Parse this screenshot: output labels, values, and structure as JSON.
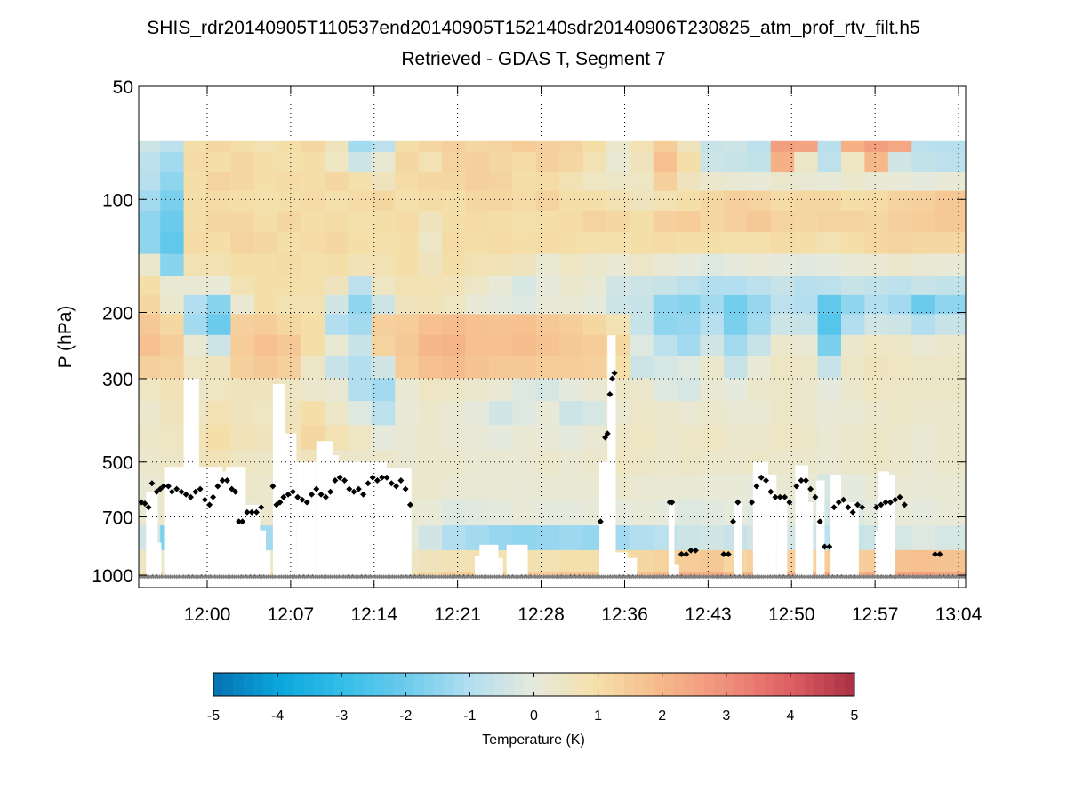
{
  "chart_data": {
    "type": "heatmap",
    "title": "SHIS_rdr20140905T110537end20140905T152140sdr20140906T230825_atm_prof_rtv_filt.h5",
    "subtitle": "Retrieved - GDAS T, Segment 7",
    "xlabel": "",
    "ylabel": "P (hPa)",
    "y_scale": "log",
    "y_reversed": true,
    "ylim": [
      1080,
      50
    ],
    "y_ticks": [
      50,
      100,
      200,
      300,
      500,
      700,
      1000
    ],
    "y_tick_labels": [
      "50",
      "100",
      "200",
      "300",
      "500",
      "700",
      "1000"
    ],
    "xlim_minutes_from_1200": [
      -5.8,
      64.6
    ],
    "x_ticks_minutes_from_1200": [
      0,
      7.11,
      14.22,
      21.33,
      28.44,
      35.56,
      42.67,
      49.78,
      56.89,
      64
    ],
    "x_tick_labels": [
      "12:00",
      "12:07",
      "12:14",
      "12:21",
      "12:28",
      "12:36",
      "12:43",
      "12:50",
      "12:57",
      "13:04"
    ],
    "grid": true,
    "colorbar": {
      "label": "Temperature (K)",
      "range": [
        -5,
        5
      ],
      "ticks": [
        -5,
        -4,
        -3,
        -2,
        -1,
        0,
        1,
        2,
        3,
        4,
        5
      ],
      "tick_labels": [
        "-5",
        "-4",
        "-3",
        "-2",
        "-1",
        "0",
        "1",
        "2",
        "3",
        "4",
        "5"
      ],
      "colors": [
        "#0571b0",
        "#0aa6dc",
        "#34bde9",
        "#6ccbec",
        "#b2def0",
        "#e6eadc",
        "#f5dfa8",
        "#f6b889",
        "#ef8f7a",
        "#de5f62",
        "#a92f45"
      ],
      "location": "bottom"
    },
    "data_top_pressure": 70,
    "pressure_levels": [
      70,
      80,
      90,
      100,
      115,
      130,
      150,
      170,
      190,
      215,
      245,
      280,
      320,
      370,
      430,
      500,
      580,
      680,
      800,
      920,
      1050
    ],
    "time_bins_minutes_from_1200": [
      -5.8,
      -4,
      -2,
      0,
      2,
      4,
      6,
      8,
      10,
      12,
      14,
      16,
      18,
      20,
      22,
      24,
      26,
      28,
      30,
      32,
      34,
      36,
      38,
      40,
      42,
      44,
      46,
      48,
      50,
      52,
      54,
      56,
      58,
      60,
      62,
      64.6
    ],
    "values": [
      [
        -0.5,
        -0.8,
        1.0,
        1.2,
        1.0,
        0.8,
        1.0,
        1.2,
        0.6,
        -1.2,
        -0.8,
        1.0,
        1.2,
        1.4,
        1.2,
        1.3,
        1.5,
        1.4,
        1.3,
        1.0,
        0.3,
        0.8,
        1.5,
        0.6,
        -0.6,
        -0.5,
        -0.8,
        2.6,
        2.5,
        -0.9,
        2.2,
        2.6,
        2.4,
        -0.8,
        -0.9
      ],
      [
        -0.8,
        -1.2,
        1.1,
        1.0,
        1.2,
        1.0,
        0.9,
        1.0,
        0.5,
        -0.5,
        0.2,
        1.2,
        0.8,
        1.3,
        1.4,
        1.2,
        1.1,
        1.4,
        1.2,
        0.8,
        0.2,
        0.6,
        1.8,
        1.0,
        -0.5,
        -0.6,
        -0.7,
        2.2,
        0.4,
        -0.8,
        0.5,
        2.0,
        -0.4,
        -0.7,
        -0.8
      ],
      [
        -0.9,
        -1.5,
        1.0,
        1.3,
        1.2,
        1.0,
        1.1,
        1.0,
        1.2,
        0.9,
        0.6,
        1.1,
        1.2,
        1.2,
        1.4,
        1.3,
        1.0,
        1.1,
        0.8,
        0.5,
        0.4,
        0.5,
        1.4,
        0.6,
        0.3,
        0.2,
        0.1,
        0.3,
        0.2,
        0.1,
        0.3,
        0.2,
        0.1,
        0.0,
        0.1
      ],
      [
        -1.2,
        -1.8,
        1.0,
        1.1,
        1.0,
        0.9,
        1.0,
        1.1,
        0.9,
        1.1,
        1.2,
        0.9,
        1.1,
        1.0,
        1.2,
        1.2,
        1.1,
        1.3,
        1.0,
        1.0,
        0.8,
        0.6,
        0.8,
        1.0,
        1.2,
        1.4,
        1.3,
        1.1,
        1.2,
        1.2,
        1.0,
        1.1,
        1.3,
        1.4,
        1.6
      ],
      [
        -1.5,
        -2.0,
        1.0,
        1.2,
        1.2,
        1.0,
        1.2,
        1.0,
        1.1,
        0.9,
        1.0,
        1.1,
        0.6,
        1.0,
        1.1,
        1.0,
        0.9,
        1.0,
        1.1,
        1.3,
        1.2,
        1.0,
        1.4,
        1.5,
        1.2,
        1.4,
        1.6,
        1.3,
        1.2,
        1.3,
        1.3,
        1.2,
        1.4,
        1.5,
        1.6
      ],
      [
        -1.5,
        -2.2,
        1.1,
        1.0,
        1.3,
        1.2,
        1.0,
        1.1,
        1.2,
        1.0,
        0.9,
        1.0,
        0.4,
        1.1,
        1.0,
        1.1,
        1.0,
        1.1,
        1.0,
        0.9,
        0.9,
        1.0,
        1.1,
        1.0,
        1.0,
        0.9,
        0.9,
        1.1,
        1.0,
        0.8,
        1.0,
        1.2,
        1.3,
        1.2,
        1.2
      ],
      [
        0.3,
        -1.6,
        0.8,
        0.8,
        1.0,
        1.0,
        1.1,
        0.9,
        1.0,
        0.7,
        0.8,
        1.0,
        0.6,
        1.0,
        0.8,
        0.7,
        0.6,
        0.2,
        0.5,
        0.3,
        0.2,
        0.4,
        0.2,
        0.0,
        -0.2,
        0.0,
        0.1,
        0.0,
        -0.1,
        0.0,
        0.1,
        0.2,
        0.3,
        0.2,
        0.1
      ],
      [
        1.0,
        0.2,
        0.2,
        0.1,
        0.8,
        1.0,
        1.0,
        0.9,
        0.6,
        -0.8,
        0.5,
        0.8,
        0.8,
        0.7,
        0.4,
        0.1,
        -0.3,
        0.0,
        0.3,
        0.2,
        -0.4,
        -0.5,
        -0.6,
        -0.8,
        -1.0,
        -1.0,
        -0.8,
        -0.6,
        -0.9,
        -0.8,
        -0.6,
        -0.7,
        -0.8,
        -0.6,
        -0.7
      ],
      [
        1.2,
        0.3,
        -1.0,
        -1.6,
        0.2,
        1.0,
        0.8,
        0.8,
        -0.4,
        -1.5,
        -0.5,
        0.6,
        0.7,
        0.5,
        0.1,
        0.0,
        -0.2,
        0.1,
        0.2,
        0.0,
        -0.5,
        -0.6,
        -1.5,
        -1.6,
        -1.2,
        -1.9,
        -1.4,
        -0.8,
        -1.0,
        -2.2,
        -1.5,
        -1.0,
        -1.2,
        -2.0,
        -1.5
      ],
      [
        1.6,
        1.2,
        -1.2,
        -2.0,
        1.4,
        1.5,
        1.2,
        1.0,
        -1.0,
        -1.2,
        1.4,
        1.5,
        1.8,
        1.9,
        1.8,
        1.7,
        1.8,
        1.6,
        1.5,
        1.2,
        0.8,
        -0.6,
        -1.5,
        -1.4,
        -0.9,
        -1.8,
        -1.2,
        -0.5,
        -0.6,
        -2.4,
        -1.0,
        -0.4,
        -0.5,
        -1.0,
        -0.6
      ],
      [
        1.8,
        1.5,
        0.2,
        -0.5,
        1.5,
        1.8,
        1.6,
        1.0,
        0.2,
        -0.6,
        1.3,
        1.6,
        2.0,
        2.1,
        1.8,
        1.8,
        1.9,
        1.7,
        1.6,
        1.5,
        1.2,
        -0.2,
        -0.8,
        -1.2,
        -0.4,
        -1.2,
        -0.6,
        0.3,
        0.2,
        -1.8,
        0.3,
        0.5,
        0.4,
        0.2,
        0.3
      ],
      [
        1.4,
        1.3,
        0.5,
        0.6,
        1.4,
        1.6,
        1.4,
        0.4,
        -0.6,
        -1.0,
        -0.4,
        1.5,
        1.8,
        1.9,
        1.7,
        1.6,
        1.6,
        1.5,
        1.5,
        1.4,
        1.0,
        -0.5,
        -0.3,
        -0.2,
        0.3,
        -0.6,
        0.1,
        0.5,
        0.4,
        -0.6,
        0.4,
        0.6,
        0.5,
        0.4,
        0.4
      ],
      [
        0.5,
        0.7,
        0.4,
        0.5,
        0.6,
        0.6,
        0.5,
        0.3,
        0.2,
        -1.0,
        -1.2,
        0.2,
        0.5,
        0.4,
        0.3,
        0.2,
        -0.2,
        -0.3,
        0.0,
        0.2,
        0.4,
        0.3,
        -0.2,
        -0.3,
        0.2,
        0.0,
        0.3,
        0.4,
        0.3,
        0.0,
        0.3,
        0.5,
        0.4,
        0.4,
        0.4
      ],
      [
        0.3,
        0.6,
        0.5,
        0.8,
        0.6,
        0.5,
        0.6,
        1.0,
        0.4,
        -0.2,
        -0.8,
        0.1,
        0.3,
        0.2,
        0.0,
        -0.4,
        -0.2,
        0.1,
        -0.5,
        -0.3,
        0.2,
        0.4,
        0.3,
        0.2,
        0.3,
        0.2,
        0.2,
        0.4,
        0.3,
        0.1,
        0.2,
        0.3,
        0.4,
        0.3,
        0.3
      ],
      [
        0.4,
        0.5,
        0.7,
        1.0,
        0.7,
        0.6,
        0.7,
        1.2,
        0.8,
        0.5,
        0.0,
        0.2,
        0.3,
        0.2,
        0.1,
        0.0,
        0.2,
        0.1,
        0.0,
        0.2,
        0.4,
        0.5,
        0.3,
        0.4,
        0.5,
        0.3,
        0.3,
        0.5,
        0.4,
        0.2,
        0.3,
        0.4,
        0.3,
        0.2,
        0.3
      ],
      [
        0.3,
        0.4,
        0.6,
        0.7,
        0.5,
        0.4,
        0.5,
        0.6,
        0.4,
        0.3,
        0.3,
        0.2,
        0.3,
        0.3,
        0.2,
        0.2,
        0.2,
        0.3,
        0.2,
        0.3,
        0.5,
        0.4,
        0.3,
        0.4,
        0.3,
        0.3,
        0.4,
        0.3,
        0.3,
        0.2,
        0.3,
        0.4,
        0.3,
        0.2,
        0.3
      ],
      [
        0.2,
        0.3,
        0.4,
        0.4,
        0.4,
        0.3,
        0.3,
        0.4,
        0.3,
        0.2,
        0.2,
        0.3,
        0.3,
        0.2,
        0.2,
        0.2,
        0.1,
        0.2,
        0.2,
        0.2,
        0.3,
        0.2,
        0.2,
        0.2,
        0.1,
        0.1,
        0.0,
        0.2,
        0.1,
        -0.3,
        0.0,
        0.2,
        0.2,
        0.1,
        0.2
      ],
      [
        0.2,
        0.3,
        0.3,
        0.3,
        0.2,
        0.3,
        0.1,
        0.2,
        0.2,
        0.2,
        0.2,
        0.2,
        0.1,
        -0.2,
        -0.1,
        0.0,
        0.1,
        0.0,
        0.0,
        0.1,
        0.0,
        0.1,
        0.0,
        -0.2,
        -0.1,
        0.0,
        -0.2,
        0.0,
        -0.1,
        -0.4,
        -0.2,
        0.0,
        0.1,
        0.0,
        0.1
      ],
      [
        -0.4,
        -1.8,
        0.2,
        0.2,
        0.2,
        -1.2,
        -1.5,
        0.1,
        0.1,
        0.1,
        0.1,
        0.1,
        -0.4,
        -1.0,
        -1.2,
        -1.4,
        -1.5,
        -1.4,
        -1.3,
        -1.4,
        -1.2,
        -1.0,
        -0.8,
        -0.5,
        -0.4,
        -0.6,
        -0.4,
        -0.3,
        -0.5,
        -0.8,
        -0.6,
        -0.5,
        -0.3,
        -0.2,
        -0.3
      ],
      [
        0.5,
        0.3,
        0.4,
        0.5,
        0.8,
        0.4,
        -0.3,
        0.2,
        0.3,
        0.3,
        0.3,
        0.4,
        0.6,
        0.7,
        0.8,
        0.8,
        0.9,
        0.8,
        0.9,
        0.9,
        1.0,
        1.2,
        1.3,
        1.5,
        1.6,
        1.2,
        1.4,
        1.4,
        1.3,
        1.5,
        1.4,
        1.5,
        1.7,
        1.8,
        1.7
      ],
      [
        0.8,
        1.2,
        0.8,
        0.6,
        1.0,
        1.2,
        1.5,
        0.6,
        0.6,
        0.5,
        0.8,
        0.9,
        1.2,
        1.4,
        1.5,
        1.5,
        1.6,
        1.5,
        1.7,
        1.8,
        1.6,
        1.8,
        2.0,
        2.2,
        2.3,
        2.0,
        2.2,
        2.1,
        2.2,
        2.4,
        2.2,
        2.4,
        2.5,
        2.6,
        2.4
      ]
    ],
    "no_data_regions_note": "white cloud-masked columns below cloud tops",
    "cloud_mask": [
      {
        "t0": -5.2,
        "t1": -4.2,
        "p_top": 600
      },
      {
        "t0": -4.2,
        "t1": -3.9,
        "p_top": 820
      },
      {
        "t0": -2.0,
        "t1": -0.7,
        "p_top": 300
      },
      {
        "t0": -3.6,
        "t1": 1.3,
        "p_top": 515
      },
      {
        "t0": 1.3,
        "t1": 1.6,
        "p_top": 530
      },
      {
        "t0": 1.6,
        "t1": 3.3,
        "p_top": 515
      },
      {
        "t0": 3.3,
        "t1": 4.5,
        "p_top": 650
      },
      {
        "t0": 4.5,
        "t1": 5.0,
        "p_top": 760
      },
      {
        "t0": 5.0,
        "t1": 5.4,
        "p_top": 860
      },
      {
        "t0": 5.6,
        "t1": 6.6,
        "p_top": 310
      },
      {
        "t0": 6.6,
        "t1": 7.6,
        "p_top": 420
      },
      {
        "t0": 7.6,
        "t1": 9.3,
        "p_top": 500
      },
      {
        "t0": 9.3,
        "t1": 10.7,
        "p_top": 440
      },
      {
        "t0": 10.7,
        "t1": 11.2,
        "p_top": 480
      },
      {
        "t0": 11.2,
        "t1": 13.4,
        "p_top": 500
      },
      {
        "t0": 13.4,
        "t1": 15.3,
        "p_top": 500
      },
      {
        "t0": 15.3,
        "t1": 17.4,
        "p_top": 520
      },
      {
        "t0": 22.8,
        "t1": 23.2,
        "p_top": 890
      },
      {
        "t0": 23.2,
        "t1": 24.8,
        "p_top": 830
      },
      {
        "t0": 24.8,
        "t1": 25.2,
        "p_top": 900
      },
      {
        "t0": 25.5,
        "t1": 27.3,
        "p_top": 830
      },
      {
        "t0": 33.4,
        "t1": 34.8,
        "p_top": 500
      },
      {
        "t0": 34.1,
        "t1": 34.8,
        "p_top": 230
      },
      {
        "t0": 34.8,
        "t1": 35.8,
        "p_top": 870
      },
      {
        "t0": 35.8,
        "t1": 36.6,
        "p_top": 900
      },
      {
        "t0": 39.3,
        "t1": 39.8,
        "p_top": 640
      },
      {
        "t0": 39.8,
        "t1": 40.2,
        "p_top": 940
      },
      {
        "t0": 44.9,
        "t1": 45.6,
        "p_top": 640
      },
      {
        "t0": 46.5,
        "t1": 47.8,
        "p_top": 500
      },
      {
        "t0": 47.8,
        "t1": 48.5,
        "p_top": 540
      },
      {
        "t0": 48.5,
        "t1": 49.4,
        "p_top": 620
      },
      {
        "t0": 50.1,
        "t1": 51.2,
        "p_top": 510
      },
      {
        "t0": 51.2,
        "t1": 51.6,
        "p_top": 640
      },
      {
        "t0": 51.9,
        "t1": 52.6,
        "p_top": 560
      },
      {
        "t0": 53.1,
        "t1": 54.0,
        "p_top": 540
      },
      {
        "t0": 54.0,
        "t1": 55.5,
        "p_top": 640
      },
      {
        "t0": 57.1,
        "t1": 58.1,
        "p_top": 530
      },
      {
        "t0": 58.1,
        "t1": 58.6,
        "p_top": 540
      },
      {
        "t0": 56.9,
        "t1": 57.1,
        "p_top": 760
      }
    ],
    "cloud_top_points": {
      "name": "cloud top pressure",
      "color": "#000000",
      "t": [
        -5.6,
        -5.3,
        -5.0,
        -4.7,
        -4.3,
        -4.0,
        -3.7,
        -3.3,
        -3.0,
        -2.6,
        -2.2,
        -1.8,
        -1.4,
        -1.0,
        -0.6,
        -0.2,
        0.2,
        0.5,
        0.9,
        1.3,
        1.7,
        2.1,
        2.4,
        2.7,
        3.0,
        3.4,
        3.8,
        4.2,
        4.6,
        5.6,
        5.9,
        6.2,
        6.5,
        6.9,
        7.3,
        7.7,
        8.1,
        8.5,
        8.9,
        9.3,
        9.7,
        10.1,
        10.5,
        10.9,
        11.3,
        11.7,
        12.1,
        12.5,
        12.9,
        13.3,
        13.7,
        14.1,
        14.5,
        14.9,
        15.3,
        15.7,
        16.1,
        16.5,
        16.9,
        17.3,
        33.5,
        33.9,
        34.1,
        34.3,
        34.5,
        34.7,
        39.4,
        39.6,
        40.4,
        40.8,
        41.2,
        41.6,
        44.0,
        44.4,
        44.8,
        45.2,
        46.4,
        46.8,
        47.2,
        47.6,
        48.0,
        48.4,
        48.8,
        49.2,
        49.6,
        50.2,
        50.6,
        51.0,
        51.4,
        51.8,
        52.2,
        52.6,
        53.0,
        53.4,
        53.8,
        54.2,
        54.6,
        55.0,
        55.4,
        55.8,
        57.0,
        57.4,
        57.8,
        58.2,
        58.6,
        59.0,
        59.4,
        62.0,
        62.4
      ],
      "p": [
        640,
        645,
        660,
        570,
        600,
        590,
        580,
        580,
        600,
        590,
        600,
        610,
        620,
        600,
        590,
        630,
        650,
        620,
        580,
        560,
        560,
        590,
        600,
        720,
        720,
        680,
        680,
        680,
        660,
        580,
        650,
        640,
        620,
        610,
        600,
        620,
        630,
        640,
        610,
        590,
        610,
        620,
        600,
        560,
        550,
        560,
        590,
        600,
        590,
        610,
        570,
        550,
        560,
        550,
        550,
        570,
        580,
        560,
        590,
        650,
        720,
        430,
        420,
        330,
        300,
        290,
        640,
        640,
        880,
        880,
        860,
        860,
        880,
        880,
        720,
        640,
        640,
        580,
        550,
        560,
        600,
        620,
        620,
        620,
        640,
        580,
        560,
        560,
        590,
        620,
        720,
        840,
        840,
        660,
        640,
        630,
        660,
        680,
        650,
        660,
        660,
        650,
        640,
        640,
        630,
        620,
        650,
        880,
        880
      ],
      "marker": "diamond"
    },
    "surface_points": {
      "name": "surface pressure",
      "color": "#808080",
      "p": 1010
    }
  }
}
